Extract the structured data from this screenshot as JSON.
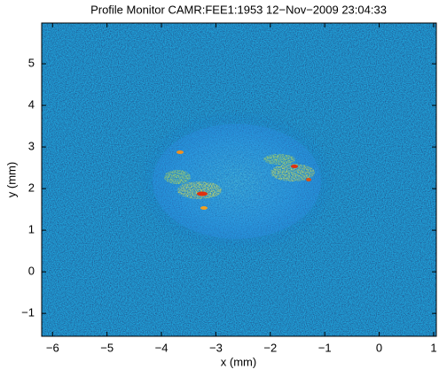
{
  "chart_data": {
    "type": "image",
    "title": "Profile Monitor CAMR:FEE1:1953 12−Nov−2009 23:04:33",
    "xlabel": "x (mm)",
    "ylabel": "y (mm)",
    "xlim": [
      -6.2,
      1.05
    ],
    "ylim": [
      -1.55,
      5.98
    ],
    "xticks": [
      {
        "value": -6,
        "label": "−6"
      },
      {
        "value": -5,
        "label": "−5"
      },
      {
        "value": -4,
        "label": "−4"
      },
      {
        "value": -3,
        "label": "−3"
      },
      {
        "value": -2,
        "label": "−2"
      },
      {
        "value": -1,
        "label": "−1"
      },
      0,
      1
    ],
    "yticks": [
      {
        "value": -1,
        "label": "−1"
      },
      0,
      1,
      2,
      3,
      4,
      5
    ]
  }
}
